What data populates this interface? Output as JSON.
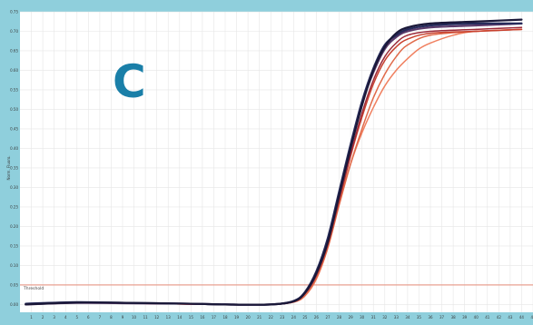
{
  "panel_label": "C",
  "chart_data": {
    "type": "line",
    "title": "",
    "xlabel": "",
    "ylabel": "Norm. Fluoro.",
    "xlim": [
      0,
      45
    ],
    "ylim": [
      -0.02,
      0.75
    ],
    "x_ticks": [
      1,
      2,
      3,
      4,
      5,
      6,
      7,
      8,
      9,
      10,
      11,
      12,
      13,
      14,
      15,
      16,
      17,
      18,
      19,
      20,
      21,
      22,
      23,
      24,
      25,
      26,
      27,
      28,
      29,
      30,
      31,
      32,
      33,
      34,
      35,
      36,
      37,
      38,
      39,
      40,
      41,
      42,
      43,
      44,
      45
    ],
    "y_ticks": [
      "0.75",
      "0.70",
      "0.65",
      "0.60",
      "0.55",
      "0.50",
      "0.45",
      "0.40",
      "0.35",
      "0.30",
      "0.25",
      "0.20",
      "0.15",
      "0.10",
      "0.05",
      "0.00"
    ],
    "threshold": {
      "label": "Threshold",
      "value": 0.05,
      "color": "#e8a090"
    },
    "series": [
      {
        "color": "#1a1838",
        "points": [
          [
            0.5,
            0.0
          ],
          [
            5,
            0.005
          ],
          [
            10,
            0.004
          ],
          [
            15,
            0.002
          ],
          [
            18,
            0.0
          ],
          [
            22,
            0.0
          ],
          [
            24,
            0.008
          ],
          [
            25,
            0.03
          ],
          [
            26,
            0.08
          ],
          [
            27,
            0.16
          ],
          [
            28,
            0.28
          ],
          [
            29,
            0.4
          ],
          [
            30,
            0.51
          ],
          [
            31,
            0.6
          ],
          [
            32,
            0.66
          ],
          [
            33,
            0.695
          ],
          [
            34,
            0.71
          ],
          [
            36,
            0.72
          ],
          [
            40,
            0.725
          ],
          [
            44,
            0.73
          ]
        ]
      },
      {
        "color": "#252a5a",
        "points": [
          [
            0.5,
            0.002
          ],
          [
            5,
            0.006
          ],
          [
            10,
            0.004
          ],
          [
            15,
            0.002
          ],
          [
            18,
            0.0
          ],
          [
            22,
            0.0
          ],
          [
            24,
            0.009
          ],
          [
            25,
            0.032
          ],
          [
            26,
            0.085
          ],
          [
            27,
            0.17
          ],
          [
            28,
            0.29
          ],
          [
            29,
            0.41
          ],
          [
            30,
            0.52
          ],
          [
            31,
            0.605
          ],
          [
            32,
            0.665
          ],
          [
            33,
            0.69
          ],
          [
            34,
            0.705
          ],
          [
            36,
            0.715
          ],
          [
            40,
            0.72
          ],
          [
            44,
            0.72
          ]
        ]
      },
      {
        "color": "#5a3a6a",
        "points": [
          [
            0.5,
            0.0
          ],
          [
            5,
            0.004
          ],
          [
            10,
            0.003
          ],
          [
            15,
            0.002
          ],
          [
            18,
            0.0
          ],
          [
            22,
            0.0
          ],
          [
            24,
            0.008
          ],
          [
            25,
            0.03
          ],
          [
            26,
            0.08
          ],
          [
            27,
            0.165
          ],
          [
            28,
            0.285
          ],
          [
            29,
            0.405
          ],
          [
            30,
            0.515
          ],
          [
            31,
            0.595
          ],
          [
            32,
            0.655
          ],
          [
            33,
            0.685
          ],
          [
            34,
            0.7
          ],
          [
            36,
            0.71
          ],
          [
            40,
            0.715
          ],
          [
            44,
            0.72
          ]
        ]
      },
      {
        "color": "#9b2a3a",
        "points": [
          [
            0.5,
            0.0
          ],
          [
            5,
            0.004
          ],
          [
            10,
            0.003
          ],
          [
            15,
            0.001
          ],
          [
            18,
            0.0
          ],
          [
            22,
            0.0
          ],
          [
            24,
            0.007
          ],
          [
            25,
            0.028
          ],
          [
            26,
            0.075
          ],
          [
            27,
            0.155
          ],
          [
            28,
            0.27
          ],
          [
            29,
            0.385
          ],
          [
            30,
            0.49
          ],
          [
            31,
            0.575
          ],
          [
            32,
            0.635
          ],
          [
            33,
            0.67
          ],
          [
            34,
            0.69
          ],
          [
            36,
            0.7
          ],
          [
            40,
            0.705
          ],
          [
            44,
            0.71
          ]
        ]
      },
      {
        "color": "#c8402e",
        "points": [
          [
            0.5,
            0.0
          ],
          [
            5,
            0.004
          ],
          [
            10,
            0.003
          ],
          [
            15,
            0.001
          ],
          [
            18,
            0.0
          ],
          [
            22,
            0.0
          ],
          [
            24,
            0.007
          ],
          [
            25,
            0.028
          ],
          [
            26,
            0.074
          ],
          [
            27,
            0.152
          ],
          [
            28,
            0.265
          ],
          [
            29,
            0.38
          ],
          [
            30,
            0.48
          ],
          [
            31,
            0.565
          ],
          [
            32,
            0.625
          ],
          [
            33,
            0.66
          ],
          [
            34,
            0.68
          ],
          [
            36,
            0.695
          ],
          [
            40,
            0.7
          ],
          [
            44,
            0.705
          ]
        ]
      },
      {
        "color": "#e06a4a",
        "points": [
          [
            0.5,
            0.0
          ],
          [
            5,
            0.004
          ],
          [
            10,
            0.003
          ],
          [
            15,
            0.001
          ],
          [
            18,
            0.0
          ],
          [
            22,
            0.0
          ],
          [
            24,
            0.006
          ],
          [
            25,
            0.024
          ],
          [
            26,
            0.068
          ],
          [
            27,
            0.145
          ],
          [
            28,
            0.255
          ],
          [
            29,
            0.36
          ],
          [
            30,
            0.45
          ],
          [
            31,
            0.53
          ],
          [
            32,
            0.59
          ],
          [
            33,
            0.635
          ],
          [
            34,
            0.665
          ],
          [
            36,
            0.69
          ],
          [
            40,
            0.7
          ],
          [
            44,
            0.705
          ]
        ]
      },
      {
        "color": "#f08060",
        "points": [
          [
            0.5,
            0.0
          ],
          [
            5,
            0.004
          ],
          [
            10,
            0.003
          ],
          [
            15,
            0.001
          ],
          [
            18,
            0.0
          ],
          [
            22,
            0.0
          ],
          [
            24,
            0.006
          ],
          [
            25,
            0.022
          ],
          [
            26,
            0.065
          ],
          [
            27,
            0.145
          ],
          [
            28,
            0.26
          ],
          [
            29,
            0.36
          ],
          [
            30,
            0.44
          ],
          [
            31,
            0.505
          ],
          [
            32,
            0.56
          ],
          [
            33,
            0.6
          ],
          [
            34,
            0.63
          ],
          [
            35,
            0.655
          ],
          [
            36,
            0.67
          ],
          [
            38,
            0.69
          ],
          [
            40,
            0.7
          ],
          [
            44,
            0.705
          ]
        ]
      }
    ]
  }
}
